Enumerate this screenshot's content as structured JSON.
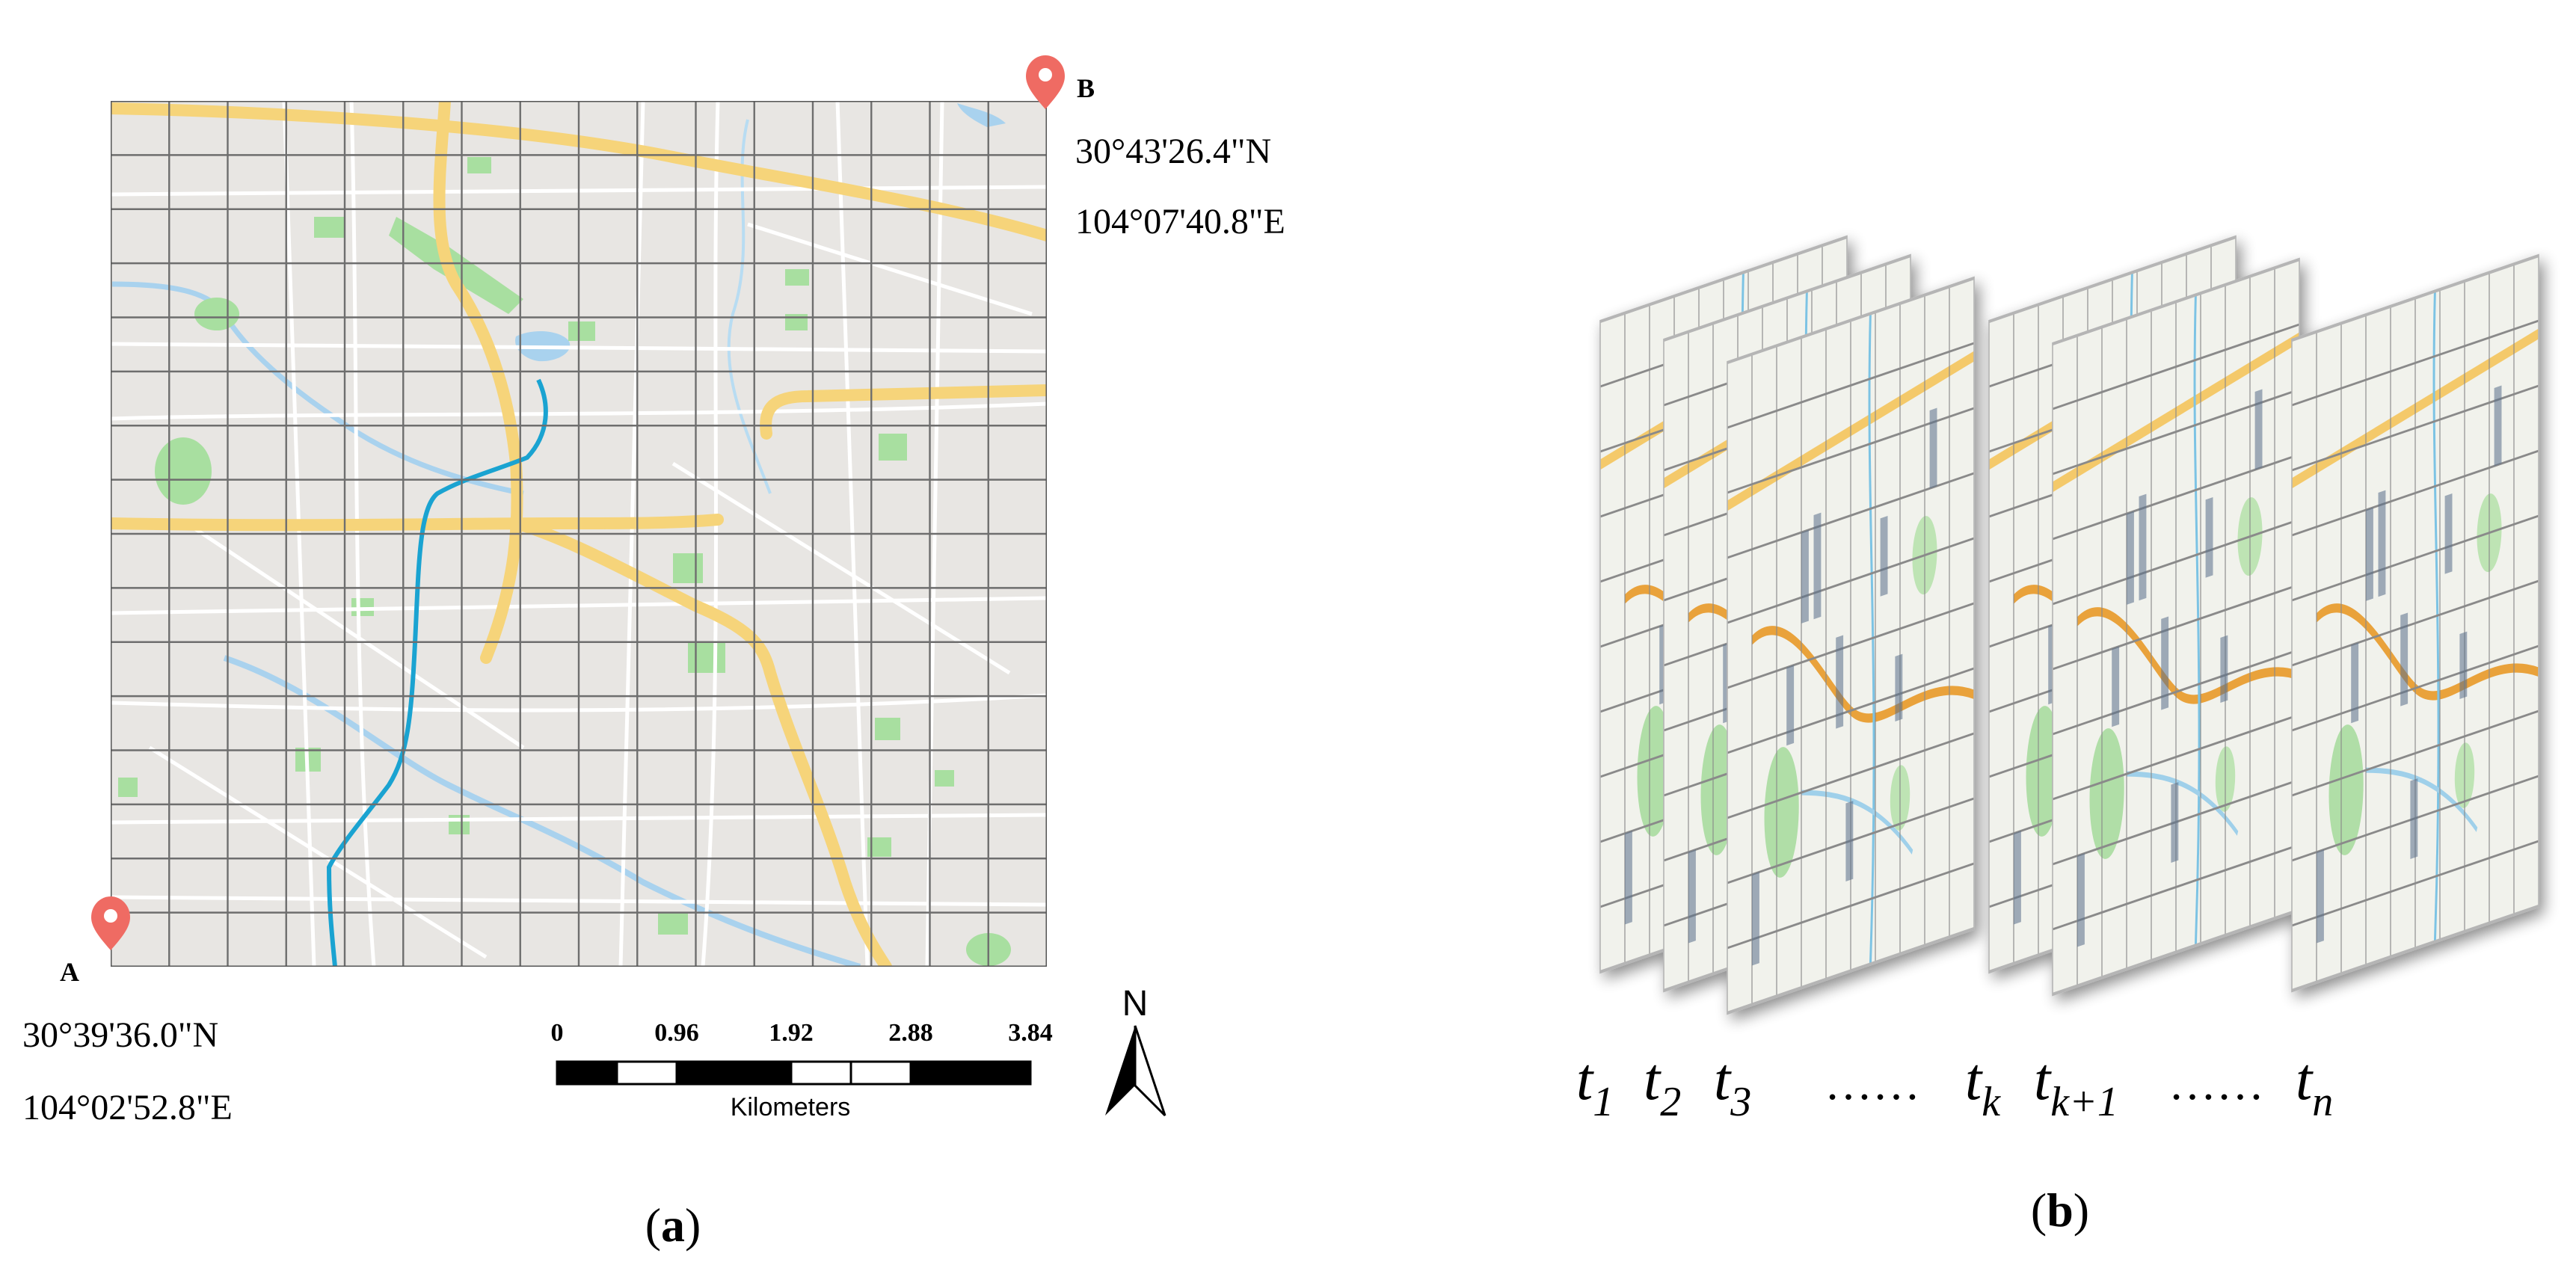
{
  "panel_a": {
    "label": "(a)",
    "label_letter": "a",
    "point_a": {
      "letter": "A",
      "lat": "30°39'36.0\"N",
      "lon": "104°02'52.8\"E"
    },
    "point_b": {
      "letter": "B",
      "lat": "30°43'26.4\"N",
      "lon": "104°07'40.8\"E"
    },
    "scale_bar": {
      "ticks": [
        "0",
        "0.96",
        "1.92",
        "2.88",
        "3.84"
      ],
      "unit": "Kilometers"
    },
    "north_arrow": {
      "label": "N"
    },
    "grid": {
      "rows": 16,
      "cols": 16
    }
  },
  "panel_b": {
    "label": "(b)",
    "label_letter": "b",
    "time_labels": [
      {
        "base": "t",
        "sub": "1"
      },
      {
        "base": "t",
        "sub": "2"
      },
      {
        "base": "t",
        "sub": "3"
      },
      {
        "ellipsis": "……"
      },
      {
        "base": "t",
        "sub": "k"
      },
      {
        "base": "t",
        "sub": "k+1"
      },
      {
        "ellipsis": "……"
      },
      {
        "base": "t",
        "sub": "n"
      }
    ]
  },
  "colors": {
    "map_bg": "#e8e6e3",
    "grid": "#6e6e6e",
    "road_major": "#f6d47a",
    "road_minor": "#ffffff",
    "water": "#a9d2ee",
    "metro": "#1aa3d1",
    "park": "#a8dfa0",
    "pin": "#ef6b63"
  }
}
